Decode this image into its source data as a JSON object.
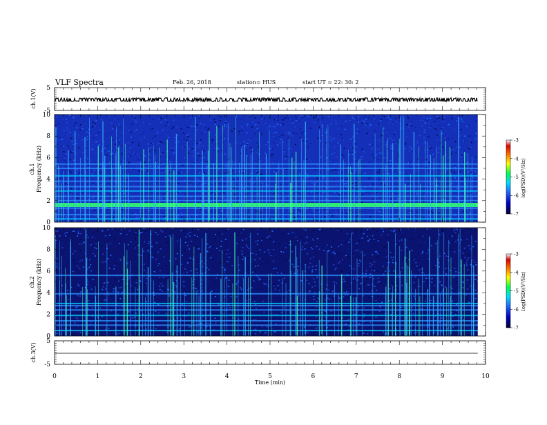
{
  "header": {
    "title": "VLF Spectra",
    "date": "Feb. 26, 2018",
    "station": "station= HUS",
    "start": "start  UT =   22: 30: 2"
  },
  "colors": {
    "background": "#ffffff",
    "axes": "#000000",
    "colormap": [
      "#000030",
      "#0000c8",
      "#1e6eff",
      "#00dcff",
      "#00ff50",
      "#ffff00",
      "#ff7800",
      "#dc0000",
      "#ffffff"
    ]
  },
  "chart_data": [
    {
      "type": "line",
      "panel": "ch1",
      "ylabel": "ch.1(V)",
      "ylim": [
        -5,
        5
      ],
      "yticks": [
        "5",
        "-5"
      ],
      "xlim": [
        0,
        10
      ],
      "series": [
        {
          "values_description": "",
          "mean": -0.3,
          "amplitude": 0.6
        }
      ]
    },
    {
      "type": "heatmap",
      "panel": "ch1-spectrogram",
      "ylabel_channel": "ch.1",
      "ylabel": "Frequency (kHz)",
      "ylim": [
        0,
        10
      ],
      "yticks": [
        "0",
        "2",
        "4",
        "6",
        "8",
        "10"
      ],
      "xlim": [
        0,
        10
      ],
      "zlim": [
        -7,
        -3
      ],
      "colorbar_label": "log(PSD)(V²/Hz)",
      "colorbar_ticks": [
        "-3",
        "-4",
        "-5",
        "-6",
        "-7"
      ],
      "bands_khz": [
        0.3,
        0.7,
        1.3,
        1.6,
        2.0,
        2.4,
        2.9,
        3.3,
        3.8,
        4.3,
        5.0,
        5.4
      ],
      "strong_band_khz": 1.6
    },
    {
      "type": "heatmap",
      "panel": "ch2-spectrogram",
      "ylabel_channel": "ch.2",
      "ylabel": "Frequency (kHz)",
      "ylim": [
        0,
        10
      ],
      "yticks": [
        "0",
        "2",
        "4",
        "6",
        "8",
        "10"
      ],
      "xlim": [
        0,
        10
      ],
      "zlim": [
        -7,
        -3
      ],
      "colorbar_label": "log(PSD)(V²/Hz)",
      "colorbar_ticks": [
        "-3",
        "-4",
        "-5",
        "-6",
        "-7"
      ],
      "bands_khz": [
        0.5,
        1.0,
        1.4,
        1.9,
        2.4,
        2.8,
        3.0,
        3.9,
        5.6
      ],
      "strong_band_khz": 2.9
    },
    {
      "type": "line",
      "panel": "ch3",
      "ylabel": "ch.3(V)",
      "ylim": [
        -5,
        5
      ],
      "yticks": [
        "5",
        "-5"
      ],
      "xlim": [
        0,
        10
      ],
      "xlabel": "Time (min)",
      "xticks": [
        "0",
        "1",
        "2",
        "3",
        "4",
        "5",
        "6",
        "7",
        "8",
        "9",
        "10"
      ],
      "series": [
        {
          "mean": -0.3,
          "amplitude": 0
        }
      ]
    }
  ]
}
